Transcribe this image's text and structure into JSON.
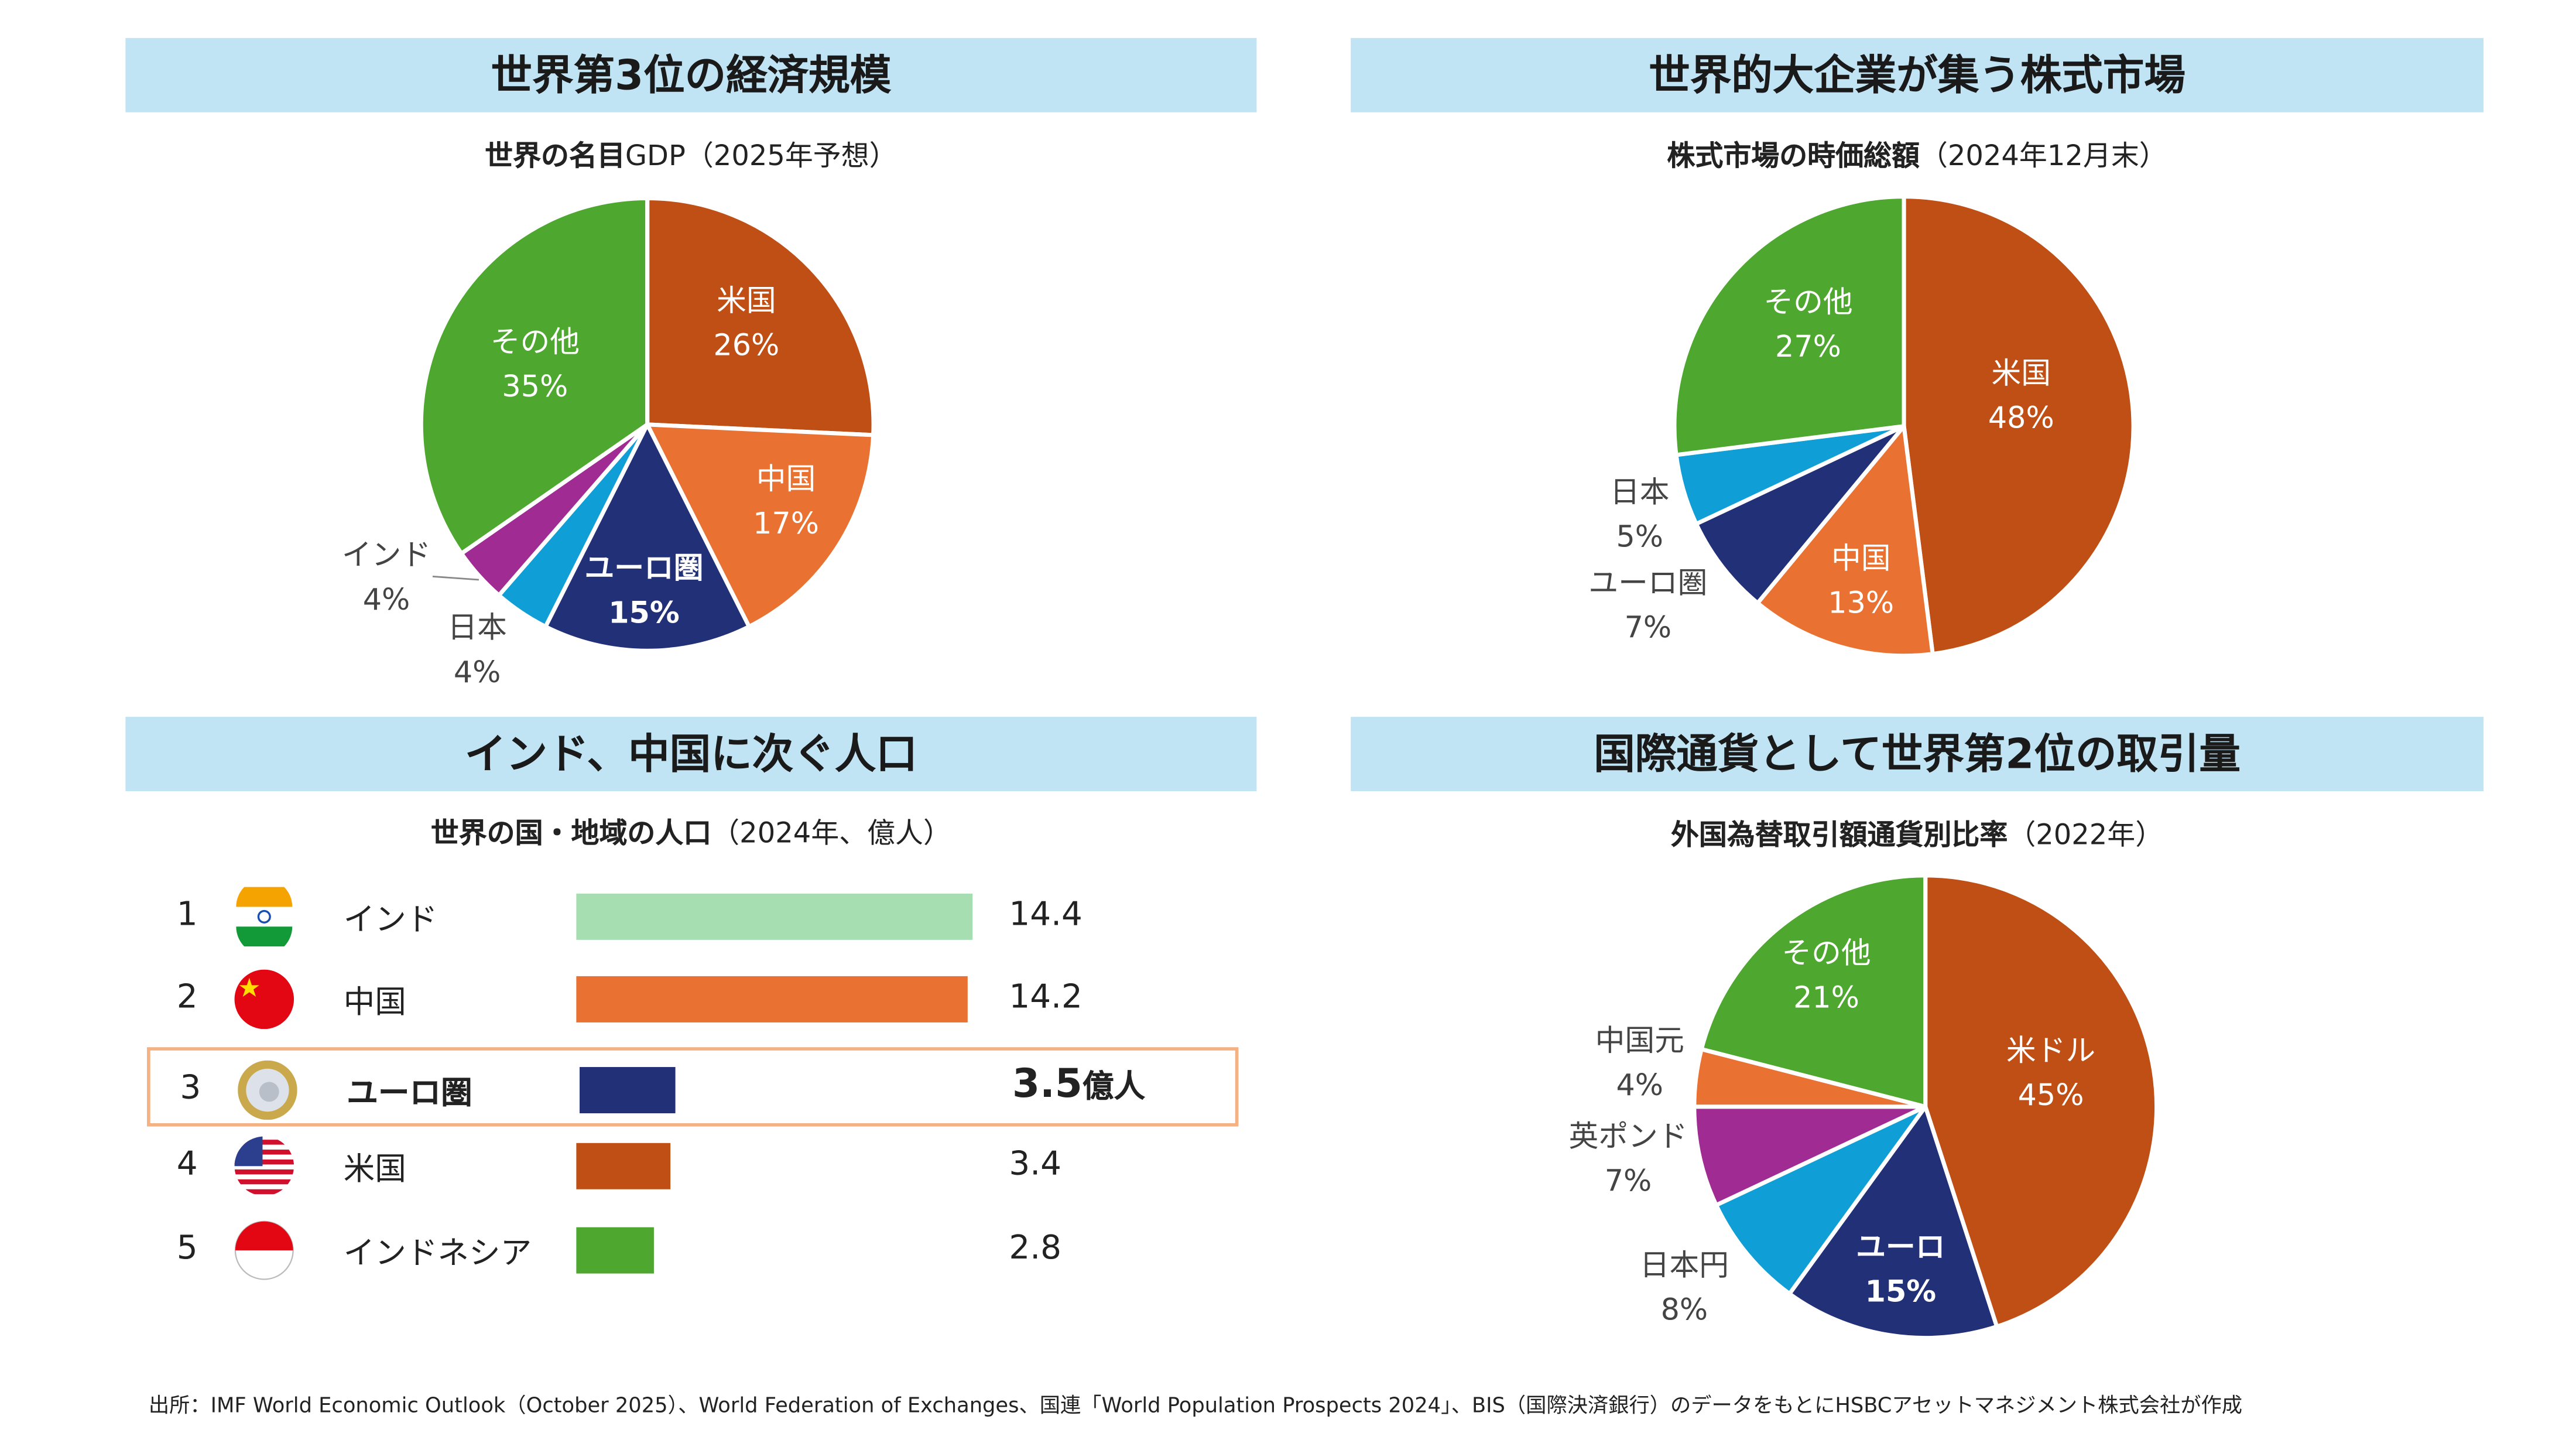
{
  "panels": {
    "gdp": {
      "header": "世界第3位の経済規模",
      "subtitle_bold": "世界の名目",
      "subtitle_rest": "GDP（2025年予想）"
    },
    "market": {
      "header": "世界的大企業が集う株式市場",
      "subtitle_bold": "株式市場の時価総額",
      "subtitle_rest": "（2024年12月末）"
    },
    "population": {
      "header": "インド、中国に次ぐ人口",
      "subtitle_bold": "世界の国・地域の人口",
      "subtitle_rest": "（2024年、億人）"
    },
    "fx": {
      "header": "国際通貨として世界第2位の取引量",
      "subtitle_bold": "外国為替取引額通貨別比率",
      "subtitle_rest": "（2022年）"
    }
  },
  "colors": {
    "us": "#C04F15",
    "china": "#E97132",
    "euro": "#223077",
    "japan": "#0F9ED5",
    "india": "#A02B93",
    "other": "#4EA72E",
    "india_bar": "#A6DEB1",
    "header_bg": "#C1E4F5",
    "highlight": "#F4B183"
  },
  "chart_data": [
    {
      "type": "pie",
      "title": "世界の名目GDP（2025年予想）",
      "start": "12 o'clock, clockwise",
      "slices": [
        {
          "label": "米国",
          "value": 26,
          "value_label": "26%",
          "color": "#C04F15"
        },
        {
          "label": "中国",
          "value": 17,
          "value_label": "17%",
          "color": "#E97132"
        },
        {
          "label": "ユーロ圏",
          "value": 15,
          "value_label": "15%",
          "color": "#223077"
        },
        {
          "label": "日本",
          "value": 4,
          "value_label": "4%",
          "color": "#0F9ED5"
        },
        {
          "label": "インド",
          "value": 4,
          "value_label": "4%",
          "color": "#A02B93"
        },
        {
          "label": "その他",
          "value": 35,
          "value_label": "35%",
          "color": "#4EA72E"
        }
      ]
    },
    {
      "type": "pie",
      "title": "株式市場の時価総額（2024年12月末）",
      "start": "12 o'clock, clockwise",
      "slices": [
        {
          "label": "米国",
          "value": 48,
          "value_label": "48%",
          "color": "#C04F15"
        },
        {
          "label": "中国",
          "value": 13,
          "value_label": "13%",
          "color": "#E97132"
        },
        {
          "label": "ユーロ圏",
          "value": 7,
          "value_label": "7%",
          "color": "#223077"
        },
        {
          "label": "日本",
          "value": 5,
          "value_label": "5%",
          "color": "#0F9ED5"
        },
        {
          "label": "その他",
          "value": 27,
          "value_label": "27%",
          "color": "#4EA72E"
        }
      ]
    },
    {
      "type": "bar",
      "orientation": "horizontal",
      "title": "世界の国・地域の人口（2024年、億人）",
      "rows": [
        {
          "rank": "1",
          "label": "インド",
          "value": 14.4,
          "value_label": "14.4",
          "color": "#A6DEB1",
          "flag": "india-flag-icon"
        },
        {
          "rank": "2",
          "label": "中国",
          "value": 14.2,
          "value_label": "14.2",
          "color": "#E97132",
          "flag": "china-flag-icon"
        },
        {
          "rank": "3",
          "label": "ユーロ圏",
          "value": 3.5,
          "value_label": "3.5",
          "unit": "億人",
          "color": "#223077",
          "flag": "euro-coin-icon",
          "highlighted": true
        },
        {
          "rank": "4",
          "label": "米国",
          "value": 3.4,
          "value_label": "3.4",
          "color": "#C04F15",
          "flag": "us-flag-icon"
        },
        {
          "rank": "5",
          "label": "インドネシア",
          "value": 2.8,
          "value_label": "2.8",
          "color": "#4EA72E",
          "flag": "indonesia-flag-icon"
        }
      ]
    },
    {
      "type": "pie",
      "title": "外国為替取引額通貨別比率（2022年）",
      "start": "12 o'clock, clockwise",
      "slices": [
        {
          "label": "米ドル",
          "value": 45,
          "value_label": "45%",
          "color": "#C04F15"
        },
        {
          "label": "ユーロ",
          "value": 15,
          "value_label": "15%",
          "color": "#223077"
        },
        {
          "label": "日本円",
          "value": 8,
          "value_label": "8%",
          "color": "#0F9ED5"
        },
        {
          "label": "英ポンド",
          "value": 7,
          "value_label": "7%",
          "color": "#A02B93"
        },
        {
          "label": "中国元",
          "value": 4,
          "value_label": "4%",
          "color": "#E97132"
        },
        {
          "label": "その他",
          "value": 21,
          "value_label": "21%",
          "color": "#4EA72E"
        }
      ]
    }
  ],
  "footer": "出所：IMF World Economic Outlook（October 2025）、World Federation of Exchanges、国連「World Population Prospects 2024」、BIS（国際決済銀行）のデータをもとにHSBCアセットマネジメント株式会社が作成"
}
